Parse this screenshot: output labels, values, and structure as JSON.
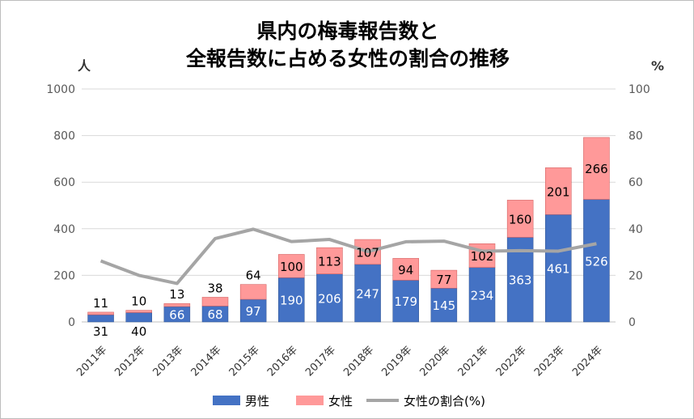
{
  "chart_data": {
    "type": "bar",
    "title_lines": [
      "県内の梅毒報告数と",
      "全報告数に占める女性の割合の推移"
    ],
    "ylabel_left": "人",
    "ylabel_right": "%",
    "ylim_left": [
      0,
      1000
    ],
    "ylim_right": [
      0,
      100
    ],
    "yticks_left": [
      "0",
      "200",
      "400",
      "600",
      "800",
      "1000"
    ],
    "yticks_right": [
      "0",
      "20",
      "40",
      "60",
      "80",
      "100"
    ],
    "categories": [
      "2011年",
      "2012年",
      "2013年",
      "2014年",
      "2015年",
      "2016年",
      "2017年",
      "2018年",
      "2019年",
      "2020年",
      "2021年",
      "2022年",
      "2023年",
      "2024年"
    ],
    "series": [
      {
        "name": "男性",
        "type": "stacked-bar",
        "color": "#4472C4",
        "values": [
          31,
          40,
          66,
          68,
          97,
          190,
          206,
          247,
          179,
          145,
          234,
          363,
          461,
          526
        ]
      },
      {
        "name": "女性",
        "type": "stacked-bar",
        "color": "#FF9999",
        "values": [
          11,
          10,
          13,
          38,
          64,
          100,
          113,
          107,
          94,
          77,
          102,
          160,
          201,
          266
        ]
      },
      {
        "name": "女性の割合(%)",
        "type": "line",
        "axis": "right",
        "color": "#A5A5A5",
        "values": [
          26.2,
          20.0,
          16.5,
          35.8,
          39.8,
          34.5,
          35.4,
          30.2,
          34.4,
          34.7,
          30.4,
          30.6,
          30.4,
          33.6
        ]
      }
    ],
    "grid": true,
    "legend": "bottom"
  }
}
